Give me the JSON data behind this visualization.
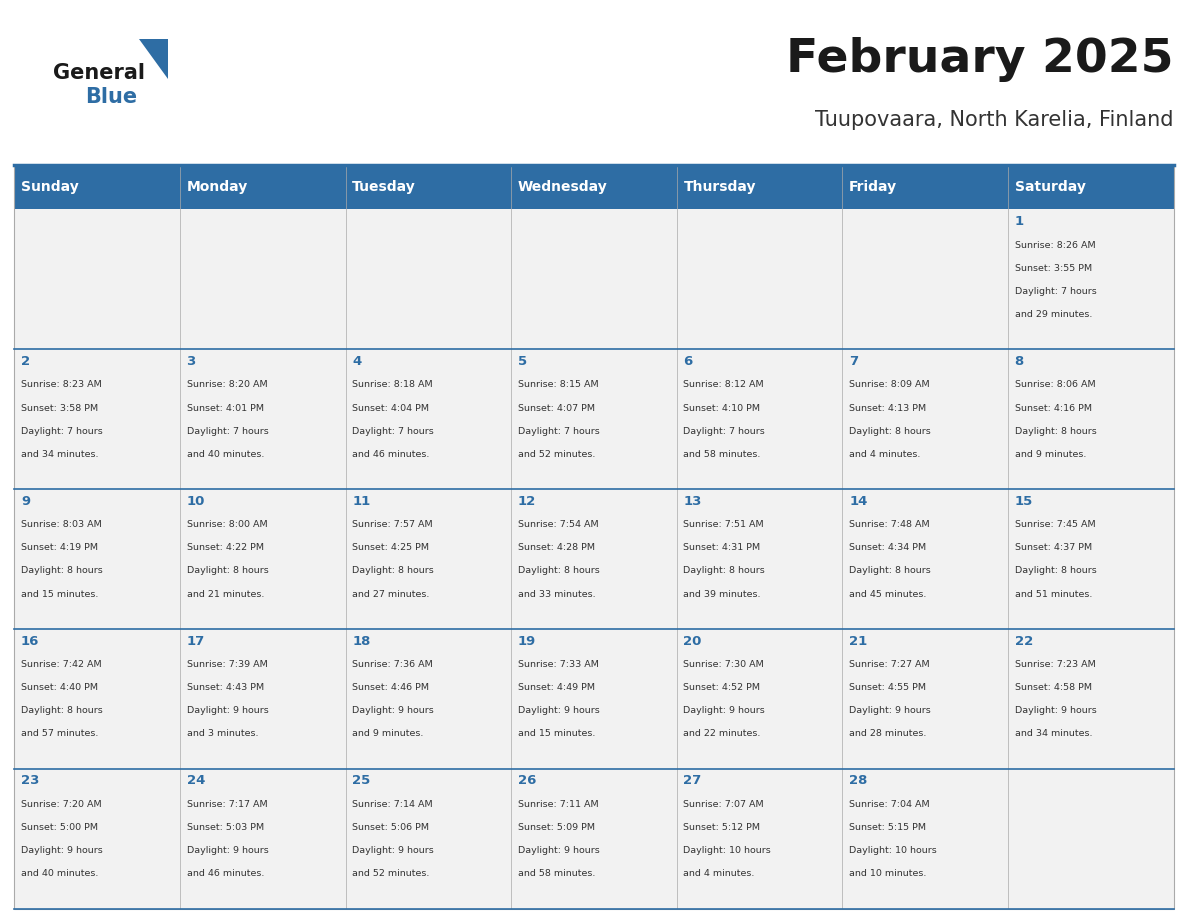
{
  "title": "February 2025",
  "subtitle": "Tuupovaara, North Karelia, Finland",
  "header_color": "#2E6DA4",
  "header_text_color": "#FFFFFF",
  "cell_bg_color": "#F2F2F2",
  "day_headers": [
    "Sunday",
    "Monday",
    "Tuesday",
    "Wednesday",
    "Thursday",
    "Friday",
    "Saturday"
  ],
  "days": [
    {
      "day": 1,
      "col": 6,
      "row": 0,
      "sunrise": "8:26 AM",
      "sunset": "3:55 PM",
      "daylight": "7 hours and 29 minutes."
    },
    {
      "day": 2,
      "col": 0,
      "row": 1,
      "sunrise": "8:23 AM",
      "sunset": "3:58 PM",
      "daylight": "7 hours and 34 minutes."
    },
    {
      "day": 3,
      "col": 1,
      "row": 1,
      "sunrise": "8:20 AM",
      "sunset": "4:01 PM",
      "daylight": "7 hours and 40 minutes."
    },
    {
      "day": 4,
      "col": 2,
      "row": 1,
      "sunrise": "8:18 AM",
      "sunset": "4:04 PM",
      "daylight": "7 hours and 46 minutes."
    },
    {
      "day": 5,
      "col": 3,
      "row": 1,
      "sunrise": "8:15 AM",
      "sunset": "4:07 PM",
      "daylight": "7 hours and 52 minutes."
    },
    {
      "day": 6,
      "col": 4,
      "row": 1,
      "sunrise": "8:12 AM",
      "sunset": "4:10 PM",
      "daylight": "7 hours and 58 minutes."
    },
    {
      "day": 7,
      "col": 5,
      "row": 1,
      "sunrise": "8:09 AM",
      "sunset": "4:13 PM",
      "daylight": "8 hours and 4 minutes."
    },
    {
      "day": 8,
      "col": 6,
      "row": 1,
      "sunrise": "8:06 AM",
      "sunset": "4:16 PM",
      "daylight": "8 hours and 9 minutes."
    },
    {
      "day": 9,
      "col": 0,
      "row": 2,
      "sunrise": "8:03 AM",
      "sunset": "4:19 PM",
      "daylight": "8 hours and 15 minutes."
    },
    {
      "day": 10,
      "col": 1,
      "row": 2,
      "sunrise": "8:00 AM",
      "sunset": "4:22 PM",
      "daylight": "8 hours and 21 minutes."
    },
    {
      "day": 11,
      "col": 2,
      "row": 2,
      "sunrise": "7:57 AM",
      "sunset": "4:25 PM",
      "daylight": "8 hours and 27 minutes."
    },
    {
      "day": 12,
      "col": 3,
      "row": 2,
      "sunrise": "7:54 AM",
      "sunset": "4:28 PM",
      "daylight": "8 hours and 33 minutes."
    },
    {
      "day": 13,
      "col": 4,
      "row": 2,
      "sunrise": "7:51 AM",
      "sunset": "4:31 PM",
      "daylight": "8 hours and 39 minutes."
    },
    {
      "day": 14,
      "col": 5,
      "row": 2,
      "sunrise": "7:48 AM",
      "sunset": "4:34 PM",
      "daylight": "8 hours and 45 minutes."
    },
    {
      "day": 15,
      "col": 6,
      "row": 2,
      "sunrise": "7:45 AM",
      "sunset": "4:37 PM",
      "daylight": "8 hours and 51 minutes."
    },
    {
      "day": 16,
      "col": 0,
      "row": 3,
      "sunrise": "7:42 AM",
      "sunset": "4:40 PM",
      "daylight": "8 hours and 57 minutes."
    },
    {
      "day": 17,
      "col": 1,
      "row": 3,
      "sunrise": "7:39 AM",
      "sunset": "4:43 PM",
      "daylight": "9 hours and 3 minutes."
    },
    {
      "day": 18,
      "col": 2,
      "row": 3,
      "sunrise": "7:36 AM",
      "sunset": "4:46 PM",
      "daylight": "9 hours and 9 minutes."
    },
    {
      "day": 19,
      "col": 3,
      "row": 3,
      "sunrise": "7:33 AM",
      "sunset": "4:49 PM",
      "daylight": "9 hours and 15 minutes."
    },
    {
      "day": 20,
      "col": 4,
      "row": 3,
      "sunrise": "7:30 AM",
      "sunset": "4:52 PM",
      "daylight": "9 hours and 22 minutes."
    },
    {
      "day": 21,
      "col": 5,
      "row": 3,
      "sunrise": "7:27 AM",
      "sunset": "4:55 PM",
      "daylight": "9 hours and 28 minutes."
    },
    {
      "day": 22,
      "col": 6,
      "row": 3,
      "sunrise": "7:23 AM",
      "sunset": "4:58 PM",
      "daylight": "9 hours and 34 minutes."
    },
    {
      "day": 23,
      "col": 0,
      "row": 4,
      "sunrise": "7:20 AM",
      "sunset": "5:00 PM",
      "daylight": "9 hours and 40 minutes."
    },
    {
      "day": 24,
      "col": 1,
      "row": 4,
      "sunrise": "7:17 AM",
      "sunset": "5:03 PM",
      "daylight": "9 hours and 46 minutes."
    },
    {
      "day": 25,
      "col": 2,
      "row": 4,
      "sunrise": "7:14 AM",
      "sunset": "5:06 PM",
      "daylight": "9 hours and 52 minutes."
    },
    {
      "day": 26,
      "col": 3,
      "row": 4,
      "sunrise": "7:11 AM",
      "sunset": "5:09 PM",
      "daylight": "9 hours and 58 minutes."
    },
    {
      "day": 27,
      "col": 4,
      "row": 4,
      "sunrise": "7:07 AM",
      "sunset": "5:12 PM",
      "daylight": "10 hours and 4 minutes."
    },
    {
      "day": 28,
      "col": 5,
      "row": 4,
      "sunrise": "7:04 AM",
      "sunset": "5:15 PM",
      "daylight": "10 hours and 10 minutes."
    }
  ],
  "logo_general_color": "#1a1a1a",
  "logo_blue_color": "#2E6DA4",
  "triangle_color": "#2E6DA4",
  "title_color": "#1a1a1a",
  "subtitle_color": "#333333",
  "text_color": "#333333",
  "day_num_color": "#2E6DA4",
  "border_color": "#AAAAAA",
  "row_divider_color": "#2E6DA4"
}
